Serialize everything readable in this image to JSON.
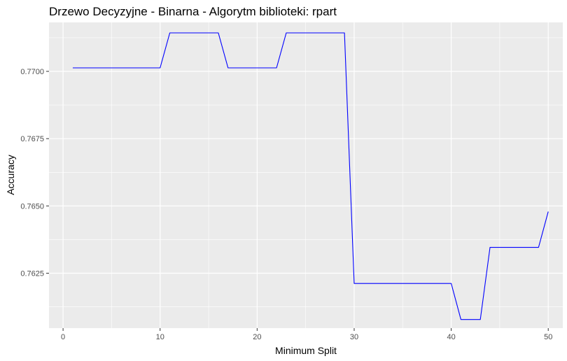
{
  "chart_data": {
    "type": "line",
    "title": "Drzewo Decyzyjne - Binarna - Algorytm biblioteki: rpart",
    "xlabel": "Minimum Split",
    "ylabel": "Accuracy",
    "x_ticks": [
      "0",
      "10",
      "20",
      "30",
      "40",
      "50"
    ],
    "y_ticks": [
      "0.7625",
      "0.7650",
      "0.7675",
      "0.7700"
    ],
    "xlim": [
      -1.45,
      51.5
    ],
    "ylim": [
      0.76046,
      0.77182
    ],
    "grid": true,
    "series_color": "#0000ff",
    "panel_background": "#ebebeb",
    "series": [
      {
        "x": [
          1,
          2,
          3,
          4,
          5,
          6,
          7,
          8,
          9,
          10,
          11,
          12,
          13,
          14,
          15,
          16,
          17,
          18,
          19,
          20,
          21,
          22,
          23,
          24,
          25,
          26,
          27,
          28,
          29,
          30,
          31,
          32,
          33,
          34,
          35,
          36,
          37,
          38,
          39,
          40,
          41,
          42,
          43,
          44,
          45,
          46,
          47,
          48,
          49,
          50
        ],
        "values": [
          0.77013,
          0.77013,
          0.77013,
          0.77013,
          0.77013,
          0.77013,
          0.77013,
          0.77013,
          0.77013,
          0.77013,
          0.77143,
          0.77143,
          0.77143,
          0.77143,
          0.77143,
          0.77143,
          0.77013,
          0.77013,
          0.77013,
          0.77013,
          0.77013,
          0.77013,
          0.77143,
          0.77143,
          0.77143,
          0.77143,
          0.77143,
          0.77143,
          0.77143,
          0.76212,
          0.76212,
          0.76212,
          0.76212,
          0.76212,
          0.76212,
          0.76212,
          0.76212,
          0.76212,
          0.76212,
          0.76212,
          0.76078,
          0.76078,
          0.76078,
          0.76346,
          0.76346,
          0.76346,
          0.76346,
          0.76346,
          0.76346,
          0.76479
        ]
      }
    ]
  }
}
